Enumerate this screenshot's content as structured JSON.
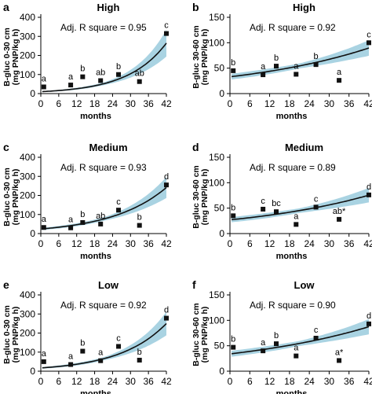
{
  "figure": {
    "xlabel": "months",
    "ylabel_top": "B-gluc 0-30 cm",
    "ylabel_sub": "(mg PNP/kg h)",
    "ylabel_top_deep": "B-gluc 30-60 cm",
    "colors": {
      "marker": "#111111",
      "curve": "#111111",
      "band": "#a9d3e2",
      "axis": "#000000"
    }
  },
  "chart_data": [
    {
      "panel": "a",
      "title": "High",
      "type": "scatter",
      "ylabel": "B-gluc 0-30 cm (mg PNP/kg h)",
      "xlabel": "months",
      "annotation": "Adj. R square = 0.95",
      "xlim": [
        0,
        42
      ],
      "xticks": [
        0,
        6,
        12,
        18,
        24,
        30,
        36,
        42
      ],
      "ylim": [
        0,
        400
      ],
      "yticks": [
        0,
        100,
        200,
        300,
        400
      ],
      "points": [
        {
          "x": 1,
          "y": 35,
          "label": "a"
        },
        {
          "x": 10,
          "y": 45,
          "label": "a"
        },
        {
          "x": 14,
          "y": 88,
          "label": "b"
        },
        {
          "x": 20,
          "y": 68,
          "label": "ab"
        },
        {
          "x": 26,
          "y": 100,
          "label": "b"
        },
        {
          "x": 33,
          "y": 63,
          "label": "ab"
        },
        {
          "x": 42,
          "y": 315,
          "label": "c"
        }
      ],
      "fit": {
        "type": "exponential",
        "a": 10,
        "b": 0.078,
        "band": 0.14
      }
    },
    {
      "panel": "b",
      "title": "High",
      "type": "scatter",
      "ylabel": "B-gluc 30-60 cm (mg PNP/kg h)",
      "xlabel": "months",
      "annotation": "Adj. R square = 0.92",
      "xlim": [
        0,
        42
      ],
      "xticks": [
        0,
        6,
        12,
        18,
        24,
        30,
        36,
        42
      ],
      "ylim": [
        0,
        150
      ],
      "yticks": [
        0,
        50,
        100,
        150
      ],
      "points": [
        {
          "x": 1,
          "y": 45,
          "label": "b"
        },
        {
          "x": 10,
          "y": 37,
          "label": "a"
        },
        {
          "x": 14,
          "y": 54,
          "label": "b"
        },
        {
          "x": 20,
          "y": 38,
          "label": "a"
        },
        {
          "x": 26,
          "y": 57,
          "label": "b"
        },
        {
          "x": 33,
          "y": 26,
          "label": "a"
        },
        {
          "x": 42,
          "y": 100,
          "label": "c"
        }
      ],
      "fit": {
        "type": "exponential",
        "a": 33,
        "b": 0.0238,
        "band": 0.09
      }
    },
    {
      "panel": "c",
      "title": "Medium",
      "type": "scatter",
      "ylabel": "B-gluc 0-30 cm (mg PNP/kg h)",
      "xlabel": "months",
      "annotation": "Adj. R square = 0.93",
      "xlim": [
        0,
        42
      ],
      "xticks": [
        0,
        6,
        12,
        18,
        24,
        30,
        36,
        42
      ],
      "ylim": [
        0,
        400
      ],
      "yticks": [
        0,
        100,
        200,
        300,
        400
      ],
      "points": [
        {
          "x": 1,
          "y": 32,
          "label": "a"
        },
        {
          "x": 10,
          "y": 30,
          "label": "a"
        },
        {
          "x": 14,
          "y": 58,
          "label": "b"
        },
        {
          "x": 20,
          "y": 50,
          "label": "ab"
        },
        {
          "x": 26,
          "y": 123,
          "label": "c"
        },
        {
          "x": 33,
          "y": 43,
          "label": "b"
        },
        {
          "x": 42,
          "y": 255,
          "label": "d"
        }
      ],
      "fit": {
        "type": "exponential",
        "a": 24,
        "b": 0.055,
        "band": 0.12
      }
    },
    {
      "panel": "d",
      "title": "Medium",
      "type": "scatter",
      "ylabel": "B-gluc 30-60 cm (mg PNP/kg h)",
      "xlabel": "months",
      "annotation": "Adj. R square = 0.89",
      "xlim": [
        0,
        42
      ],
      "xticks": [
        0,
        6,
        12,
        18,
        24,
        30,
        36,
        42
      ],
      "ylim": [
        0,
        150
      ],
      "yticks": [
        0,
        50,
        100,
        150
      ],
      "points": [
        {
          "x": 1,
          "y": 35,
          "label": "b"
        },
        {
          "x": 10,
          "y": 48,
          "label": "c"
        },
        {
          "x": 14,
          "y": 43,
          "label": "bc"
        },
        {
          "x": 20,
          "y": 18,
          "label": "a"
        },
        {
          "x": 26,
          "y": 52,
          "label": "c"
        },
        {
          "x": 33,
          "y": 28,
          "label": "ab*"
        },
        {
          "x": 42,
          "y": 76,
          "label": "d"
        }
      ],
      "fit": {
        "type": "exponential",
        "a": 27,
        "b": 0.0245,
        "band": 0.1
      }
    },
    {
      "panel": "e",
      "title": "Low",
      "type": "scatter",
      "ylabel": "B-gluc 0-30 cm (mg PNP/kg h)",
      "xlabel": "months",
      "annotation": "Adj. R square = 0.92",
      "xlim": [
        0,
        42
      ],
      "xticks": [
        0,
        6,
        12,
        18,
        24,
        30,
        36,
        42
      ],
      "ylim": [
        0,
        400
      ],
      "yticks": [
        0,
        100,
        200,
        300,
        400
      ],
      "points": [
        {
          "x": 1,
          "y": 50,
          "label": "a"
        },
        {
          "x": 10,
          "y": 35,
          "label": "a"
        },
        {
          "x": 14,
          "y": 105,
          "label": "b"
        },
        {
          "x": 20,
          "y": 55,
          "label": "a"
        },
        {
          "x": 26,
          "y": 130,
          "label": "c"
        },
        {
          "x": 33,
          "y": 58,
          "label": "b"
        },
        {
          "x": 42,
          "y": 278,
          "label": "d"
        }
      ],
      "fit": {
        "type": "exponential",
        "a": 17,
        "b": 0.064,
        "band": 0.13
      }
    },
    {
      "panel": "f",
      "title": "Low",
      "type": "scatter",
      "ylabel": "B-gluc 30-60 cm (mg PNP/kg h)",
      "xlabel": "months",
      "annotation": "Adj. R square = 0.90",
      "xlim": [
        0,
        42
      ],
      "xticks": [
        0,
        6,
        12,
        18,
        24,
        30,
        36,
        42
      ],
      "ylim": [
        0,
        150
      ],
      "yticks": [
        0,
        50,
        100,
        150
      ],
      "points": [
        {
          "x": 1,
          "y": 47,
          "label": "b"
        },
        {
          "x": 10,
          "y": 40,
          "label": "a"
        },
        {
          "x": 14,
          "y": 54,
          "label": "b"
        },
        {
          "x": 20,
          "y": 30,
          "label": "a"
        },
        {
          "x": 26,
          "y": 65,
          "label": "c"
        },
        {
          "x": 33,
          "y": 21,
          "label": "a*"
        },
        {
          "x": 42,
          "y": 93,
          "label": "d"
        }
      ],
      "fit": {
        "type": "exponential",
        "a": 34,
        "b": 0.0225,
        "band": 0.09
      }
    }
  ]
}
